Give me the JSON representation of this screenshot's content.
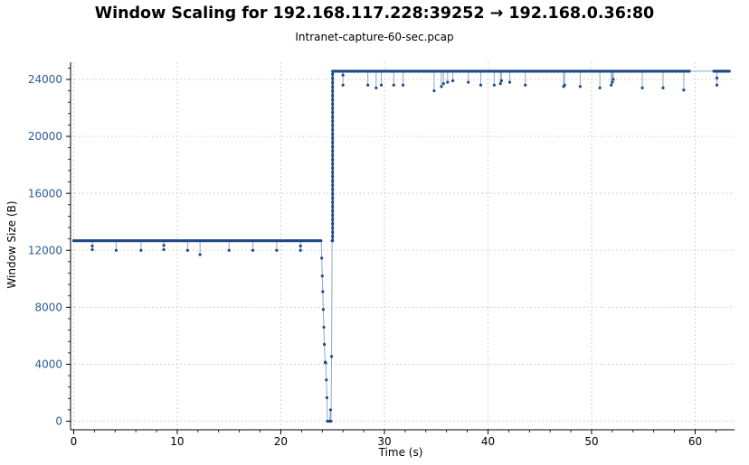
{
  "colors": {
    "series": "#1f4a8a",
    "spike": "#8fa6cc",
    "grid": "#bfbfbf",
    "y_axis_text": "#2d5a9a",
    "axis": "#000000"
  },
  "chart_data": {
    "type": "scatter",
    "title": "Window Scaling for 192.168.117.228:39252 → 192.168.0.36:80",
    "subtitle": "Intranet-capture-60-sec.pcap",
    "xlabel": "Time (s)",
    "ylabel": "Window Size (B)",
    "xlim": [
      -0.3,
      63.8
    ],
    "ylim": [
      -600,
      25200
    ],
    "x_ticks": [
      0,
      10,
      20,
      30,
      40,
      50,
      60
    ],
    "y_ticks": [
      0,
      4000,
      8000,
      12000,
      16000,
      20000,
      24000
    ],
    "x_tick_labels": [
      "0",
      "10",
      "20",
      "30",
      "40",
      "50",
      "60"
    ],
    "y_tick_labels": [
      "0",
      "4000",
      "8000",
      "12000",
      "16000",
      "20000",
      "24000"
    ],
    "grid": true,
    "baseline_phase1": {
      "y": 12672,
      "x_start": 0.0,
      "x_end": 23.9,
      "step": 0.12
    },
    "baseline_phase2": {
      "y": 24576,
      "x_start": 25.0,
      "x_end": 59.5,
      "step": 0.12
    },
    "baseline_phase3": {
      "y": 24576,
      "x_start": 61.8,
      "x_end": 63.3,
      "step": 0.1
    },
    "dips": [
      {
        "x": 1.8,
        "y": 12300
      },
      {
        "x": 1.8,
        "y": 12050
      },
      {
        "x": 4.1,
        "y": 12000
      },
      {
        "x": 6.5,
        "y": 12000
      },
      {
        "x": 8.7,
        "y": 12050
      },
      {
        "x": 8.7,
        "y": 12350
      },
      {
        "x": 11.0,
        "y": 12000
      },
      {
        "x": 12.2,
        "y": 11700
      },
      {
        "x": 15.0,
        "y": 12000
      },
      {
        "x": 17.3,
        "y": 12000
      },
      {
        "x": 19.6,
        "y": 12000
      },
      {
        "x": 21.9,
        "y": 12000
      },
      {
        "x": 21.9,
        "y": 12300
      },
      {
        "x": 26.0,
        "y": 23600
      },
      {
        "x": 26.0,
        "y": 24300
      },
      {
        "x": 28.4,
        "y": 23600
      },
      {
        "x": 29.2,
        "y": 23400
      },
      {
        "x": 29.7,
        "y": 23600
      },
      {
        "x": 30.9,
        "y": 23600
      },
      {
        "x": 31.8,
        "y": 23600
      },
      {
        "x": 34.8,
        "y": 23200
      },
      {
        "x": 35.5,
        "y": 23500
      },
      {
        "x": 35.7,
        "y": 23700
      },
      {
        "x": 36.1,
        "y": 23800
      },
      {
        "x": 36.6,
        "y": 23900
      },
      {
        "x": 38.1,
        "y": 23800
      },
      {
        "x": 39.3,
        "y": 23600
      },
      {
        "x": 40.6,
        "y": 23600
      },
      {
        "x": 41.2,
        "y": 23700
      },
      {
        "x": 41.3,
        "y": 23900
      },
      {
        "x": 42.1,
        "y": 23800
      },
      {
        "x": 43.6,
        "y": 23600
      },
      {
        "x": 47.3,
        "y": 23500
      },
      {
        "x": 47.4,
        "y": 23600
      },
      {
        "x": 48.9,
        "y": 23500
      },
      {
        "x": 50.8,
        "y": 23400
      },
      {
        "x": 51.9,
        "y": 23600
      },
      {
        "x": 52.0,
        "y": 23800
      },
      {
        "x": 52.1,
        "y": 24000
      },
      {
        "x": 54.9,
        "y": 23400
      },
      {
        "x": 56.9,
        "y": 23400
      },
      {
        "x": 58.9,
        "y": 23250
      },
      {
        "x": 62.1,
        "y": 23600
      },
      {
        "x": 62.1,
        "y": 24100
      }
    ],
    "drop": [
      {
        "x": 23.95,
        "y": 11450
      },
      {
        "x": 24.0,
        "y": 10200
      },
      {
        "x": 24.05,
        "y": 9100
      },
      {
        "x": 24.1,
        "y": 7850
      },
      {
        "x": 24.15,
        "y": 6600
      },
      {
        "x": 24.2,
        "y": 5400
      },
      {
        "x": 24.28,
        "y": 4150
      },
      {
        "x": 24.33,
        "y": 4100
      },
      {
        "x": 24.4,
        "y": 2900
      },
      {
        "x": 24.45,
        "y": 1650
      },
      {
        "x": 24.5,
        "y": 0
      },
      {
        "x": 24.7,
        "y": 0
      },
      {
        "x": 24.8,
        "y": 800
      },
      {
        "x": 24.85,
        "y": 0
      },
      {
        "x": 24.9,
        "y": 4550
      },
      {
        "x": 24.95,
        "y": 12672
      }
    ],
    "rise": {
      "x": 25.0,
      "y_from": 12672,
      "y_to": 24576
    }
  }
}
